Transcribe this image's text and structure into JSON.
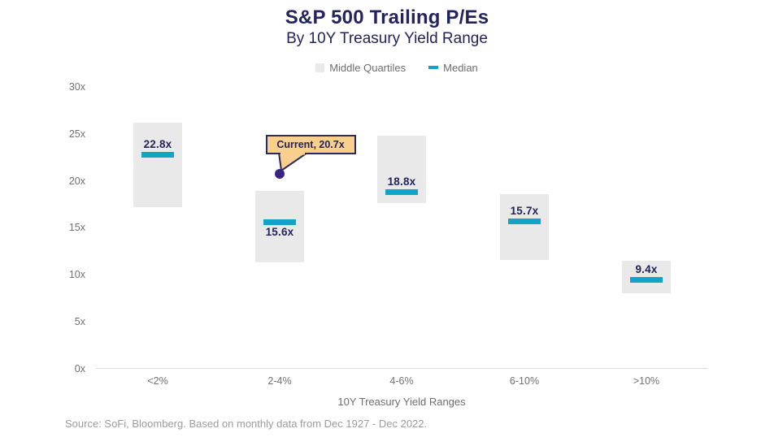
{
  "title": "S&P 500 Trailing P/Es",
  "subtitle": "By 10Y Treasury Yield Range",
  "source": "Source: SoFi, Bloomberg. Based on monthly data from Dec 1927 - Dec 2022.",
  "colors": {
    "navy": "#24245C",
    "median": "#12A3C6",
    "bar_fill": "#E9E9E9",
    "axis_line": "#D9D9D9",
    "tick_text": "#707070",
    "source_text": "#9B9B9B",
    "callout_fill": "#F9CF8E",
    "callout_border": "#2A2A5C",
    "current_dot": "#3A2482"
  },
  "chart_data": {
    "type": "bar",
    "title": "S&P 500 Trailing P/Es",
    "subtitle": "By 10Y Treasury Yield Range",
    "categories": [
      "<2%",
      "2-4%",
      "4-6%",
      "6-10%",
      ">10%"
    ],
    "series": [
      {
        "name": "Middle Quartiles",
        "ranges": [
          [
            17.2,
            26.2
          ],
          [
            11.3,
            18.9
          ],
          [
            17.6,
            24.8
          ],
          [
            11.6,
            18.6
          ],
          [
            8.0,
            11.5
          ]
        ]
      },
      {
        "name": "Median",
        "values": [
          22.8,
          15.6,
          18.8,
          15.7,
          9.4
        ]
      }
    ],
    "median_labels": [
      "22.8x",
      "15.6x",
      "18.8x",
      "15.7x",
      "9.4x"
    ],
    "label_position": [
      "above",
      "below",
      "above",
      "above",
      "above"
    ],
    "annotation": {
      "text": "Current, 20.7x",
      "category": "2-4%",
      "value": 20.7
    },
    "xlabel": "10Y Treasury Yield Ranges",
    "ylabel": "",
    "y_ticks": [
      "0x",
      "5x",
      "10x",
      "15x",
      "20x",
      "25x",
      "30x"
    ],
    "y_tick_values": [
      0,
      5,
      10,
      15,
      20,
      25,
      30
    ],
    "ylim": [
      0,
      30
    ],
    "grid": false,
    "legend_position": "top"
  }
}
